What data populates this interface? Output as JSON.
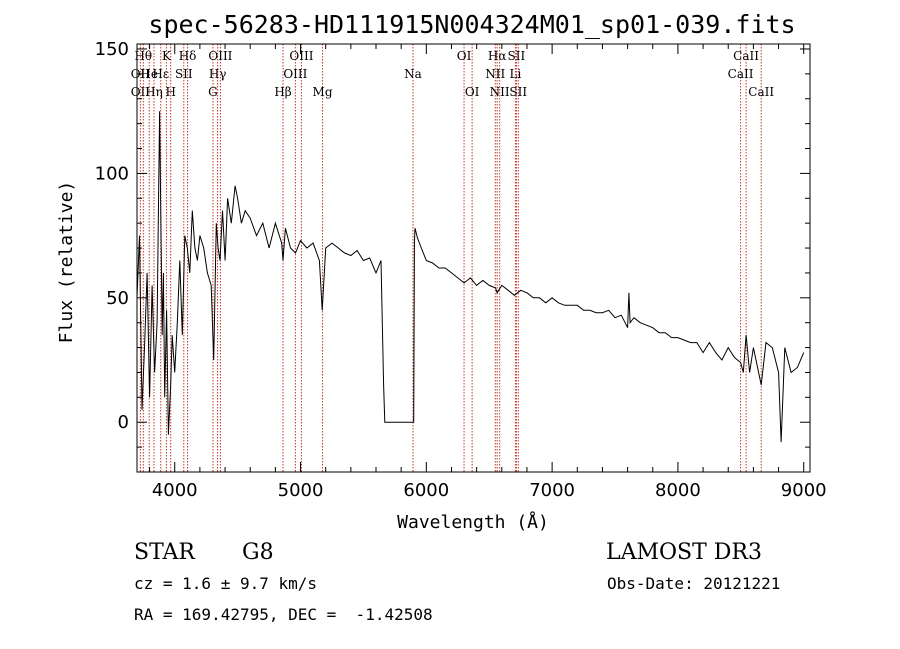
{
  "chart_data": {
    "type": "line",
    "title": "spec-56283-HD111915N004324M01_sp01-039.fits",
    "xlabel": "Wavelength (Å)",
    "ylabel": "Flux (relative)",
    "xlim": [
      3700,
      9050
    ],
    "ylim": [
      -20,
      152
    ],
    "xticks": [
      4000,
      5000,
      6000,
      7000,
      8000,
      9000
    ],
    "yticks": [
      0,
      50,
      100,
      150
    ],
    "series": [
      {
        "name": "flux",
        "x": [
          3700,
          3720,
          3740,
          3760,
          3780,
          3800,
          3820,
          3840,
          3860,
          3880,
          3890,
          3900,
          3910,
          3920,
          3935,
          3950,
          3968,
          3980,
          4000,
          4020,
          4040,
          4060,
          4080,
          4100,
          4120,
          4140,
          4160,
          4180,
          4200,
          4230,
          4260,
          4290,
          4310,
          4330,
          4345,
          4360,
          4380,
          4400,
          4420,
          4450,
          4480,
          4500,
          4530,
          4560,
          4600,
          4650,
          4700,
          4750,
          4800,
          4850,
          4861,
          4880,
          4920,
          4960,
          5000,
          5050,
          5100,
          5150,
          5172,
          5200,
          5250,
          5300,
          5350,
          5400,
          5450,
          5500,
          5550,
          5600,
          5640,
          5660,
          5670,
          5900,
          5905,
          5910,
          5930,
          5960,
          6000,
          6050,
          6100,
          6150,
          6200,
          6250,
          6300,
          6350,
          6400,
          6450,
          6500,
          6550,
          6563,
          6600,
          6650,
          6700,
          6750,
          6800,
          6850,
          6900,
          6950,
          7000,
          7050,
          7100,
          7150,
          7200,
          7250,
          7300,
          7350,
          7400,
          7450,
          7500,
          7550,
          7600,
          7610,
          7620,
          7650,
          7700,
          7750,
          7800,
          7850,
          7900,
          7950,
          8000,
          8050,
          8100,
          8150,
          8200,
          8250,
          8300,
          8350,
          8400,
          8450,
          8498,
          8520,
          8542,
          8570,
          8600,
          8662,
          8700,
          8750,
          8800,
          8820,
          8850,
          8900,
          8950,
          9000
        ],
        "values": [
          50,
          75,
          5,
          30,
          60,
          10,
          55,
          20,
          40,
          125,
          80,
          35,
          60,
          10,
          45,
          -5,
          15,
          35,
          20,
          40,
          65,
          35,
          75,
          70,
          60,
          85,
          70,
          65,
          75,
          70,
          60,
          55,
          25,
          80,
          70,
          65,
          85,
          65,
          90,
          80,
          95,
          90,
          80,
          85,
          82,
          75,
          80,
          70,
          80,
          72,
          65,
          78,
          70,
          68,
          73,
          70,
          72,
          65,
          45,
          70,
          72,
          70,
          68,
          67,
          69,
          65,
          66,
          60,
          65,
          15,
          0,
          0,
          72,
          78,
          74,
          70,
          65,
          64,
          62,
          62,
          60,
          58,
          56,
          58,
          55,
          57,
          55,
          54,
          52,
          55,
          53,
          51,
          53,
          52,
          50,
          50,
          48,
          50,
          48,
          47,
          47,
          47,
          45,
          45,
          44,
          44,
          45,
          42,
          43,
          38,
          52,
          40,
          42,
          40,
          39,
          38,
          36,
          36,
          34,
          34,
          33,
          32,
          32,
          28,
          32,
          28,
          25,
          30,
          26,
          24,
          20,
          35,
          20,
          30,
          15,
          32,
          30,
          20,
          -8,
          30,
          20,
          22,
          28
        ]
      }
    ],
    "lines": [
      {
        "name": "OII",
        "x": 3727,
        "row": 1
      },
      {
        "name": "OII",
        "x": 3727,
        "row": 2
      },
      {
        "name": "Hθ",
        "x": 3750,
        "row": 0
      },
      {
        "name": "He",
        "x": 3797,
        "row": 1
      },
      {
        "name": "Hη",
        "x": 3835,
        "row": 2
      },
      {
        "name": "Hε",
        "x": 3889,
        "row": 1
      },
      {
        "name": "K",
        "x": 3934,
        "row": 0
      },
      {
        "name": "H",
        "x": 3968,
        "row": 2
      },
      {
        "name": "SII",
        "x": 4072,
        "row": 1
      },
      {
        "name": "Hδ",
        "x": 4102,
        "row": 0
      },
      {
        "name": "G",
        "x": 4304,
        "row": 2
      },
      {
        "name": "Hγ",
        "x": 4341,
        "row": 1
      },
      {
        "name": "OIII",
        "x": 4363,
        "row": 0
      },
      {
        "name": "Hβ",
        "x": 4861,
        "row": 2
      },
      {
        "name": "OIII",
        "x": 4959,
        "row": 1
      },
      {
        "name": "OIII",
        "x": 5007,
        "row": 0
      },
      {
        "name": "Mg",
        "x": 5175,
        "row": 2
      },
      {
        "name": "Na",
        "x": 5894,
        "row": 1
      },
      {
        "name": "OI",
        "x": 6300,
        "row": 0
      },
      {
        "name": "OI",
        "x": 6364,
        "row": 2
      },
      {
        "name": "NII",
        "x": 6548,
        "row": 1
      },
      {
        "name": "NII",
        "x": 6583,
        "row": 2
      },
      {
        "name": "Hα",
        "x": 6563,
        "row": 0
      },
      {
        "name": "Li",
        "x": 6708,
        "row": 1
      },
      {
        "name": "SII",
        "x": 6716,
        "row": 0
      },
      {
        "name": "SII",
        "x": 6731,
        "row": 2
      },
      {
        "name": "CaII",
        "x": 8498,
        "row": 1
      },
      {
        "name": "CaII",
        "x": 8542,
        "row": 0
      },
      {
        "name": "CaII",
        "x": 8662,
        "row": 2
      }
    ]
  },
  "info": {
    "class_label": "STAR",
    "subclass": "G8",
    "survey": "LAMOST DR3",
    "cz": "cz = 1.6 ± 9.7 km/s",
    "obs_date": "Obs-Date: 20121221",
    "coords": "RA = 169.42795, DEC =  -1.42508"
  },
  "colors": {
    "spectrum": "#000000",
    "line_markers": "#c0392b",
    "axes": "#000000"
  }
}
